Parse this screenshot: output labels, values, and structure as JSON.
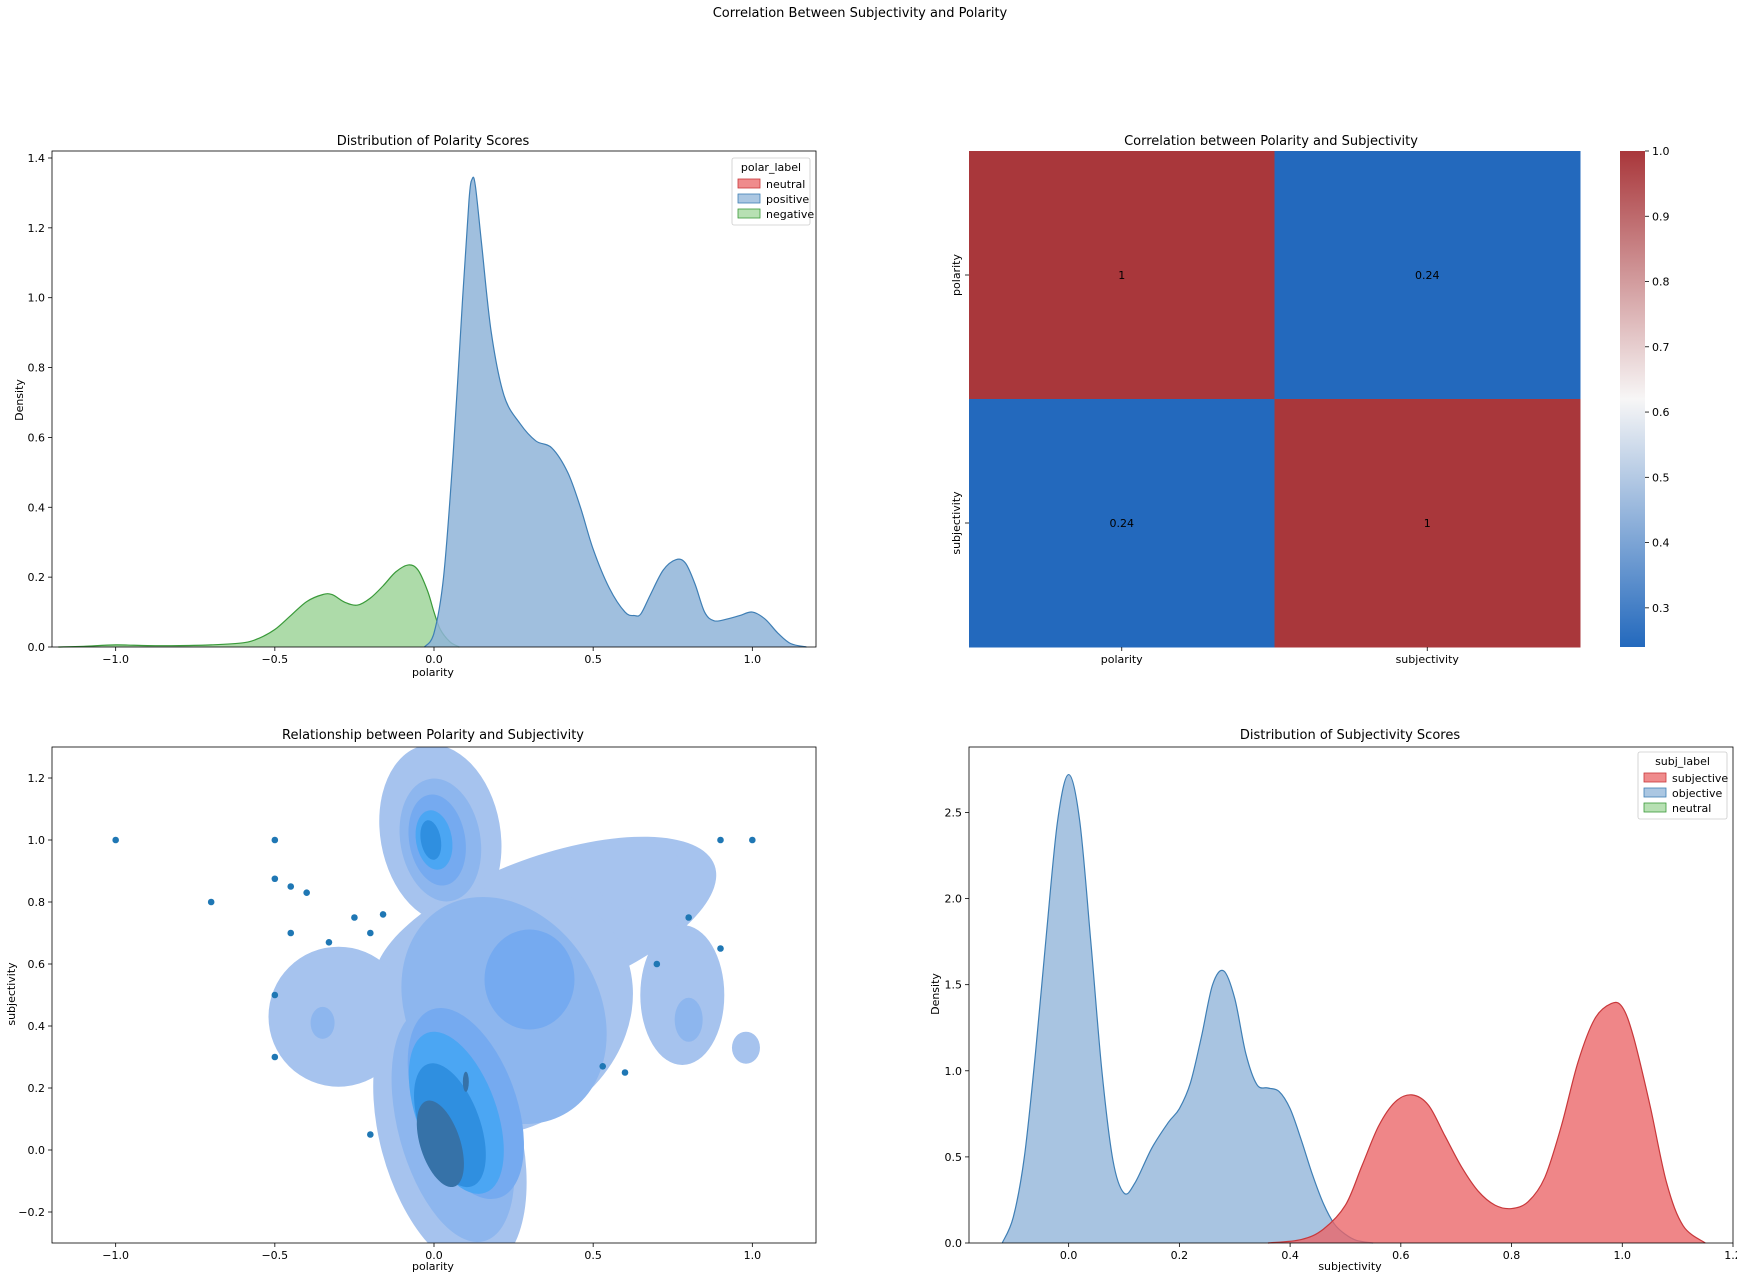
{
  "suptitle": "Correlation Between Subjectivity and Polarity",
  "chart_data": [
    {
      "type": "area",
      "title": "Distribution of Polarity Scores",
      "xlabel": "polarity",
      "ylabel": "Density",
      "xlim": [
        -1.2,
        1.2
      ],
      "ylim": [
        0,
        1.42
      ],
      "xticks": [
        -1.0,
        -0.5,
        0.0,
        0.5,
        1.0
      ],
      "xtick_labels": [
        "−1.0",
        "−0.5",
        "0.0",
        "0.5",
        "1.0"
      ],
      "yticks": [
        0.0,
        0.2,
        0.4,
        0.6,
        0.8,
        1.0,
        1.2,
        1.4
      ],
      "ytick_labels": [
        "0.0",
        "0.2",
        "0.4",
        "0.6",
        "0.8",
        "1.0",
        "1.2",
        "1.4"
      ],
      "legend": {
        "title": "polar_label",
        "placement": "top-right",
        "entries": [
          "neutral",
          "positive",
          "negative"
        ]
      },
      "series": [
        {
          "name": "negative",
          "color": "#9fd59a",
          "edge": "#3a9a3a",
          "x": [
            -1.18,
            -1.1,
            -1.0,
            -0.9,
            -0.8,
            -0.7,
            -0.6,
            -0.55,
            -0.5,
            -0.45,
            -0.4,
            -0.35,
            -0.32,
            -0.28,
            -0.24,
            -0.2,
            -0.16,
            -0.12,
            -0.08,
            -0.05,
            -0.02,
            0.0,
            0.02,
            0.05,
            0.08
          ],
          "y": [
            0.0,
            0.002,
            0.006,
            0.004,
            0.004,
            0.006,
            0.012,
            0.025,
            0.05,
            0.09,
            0.13,
            0.15,
            0.15,
            0.128,
            0.12,
            0.14,
            0.175,
            0.215,
            0.235,
            0.22,
            0.16,
            0.1,
            0.05,
            0.015,
            0.0
          ]
        },
        {
          "name": "positive",
          "color": "#8fb4d8",
          "edge": "#3f7fb5",
          "x": [
            -0.03,
            0.0,
            0.03,
            0.06,
            0.09,
            0.11,
            0.12,
            0.13,
            0.15,
            0.18,
            0.22,
            0.27,
            0.32,
            0.37,
            0.42,
            0.46,
            0.5,
            0.55,
            0.6,
            0.63,
            0.65,
            0.68,
            0.72,
            0.76,
            0.79,
            0.82,
            0.85,
            0.88,
            0.92,
            0.96,
            1.0,
            1.04,
            1.08,
            1.12,
            1.17
          ],
          "y": [
            0.0,
            0.04,
            0.2,
            0.55,
            1.0,
            1.28,
            1.34,
            1.32,
            1.15,
            0.9,
            0.72,
            0.64,
            0.59,
            0.57,
            0.5,
            0.4,
            0.28,
            0.17,
            0.1,
            0.09,
            0.095,
            0.15,
            0.22,
            0.25,
            0.24,
            0.18,
            0.1,
            0.075,
            0.08,
            0.09,
            0.1,
            0.08,
            0.04,
            0.01,
            0.0
          ]
        }
      ]
    },
    {
      "type": "heatmap",
      "title": "Correlation between Polarity and Subjectivity",
      "categories_x": [
        "polarity",
        "subjectivity"
      ],
      "categories_y": [
        "polarity",
        "subjectivity"
      ],
      "values": [
        [
          1,
          0.24
        ],
        [
          0.24,
          1
        ]
      ],
      "annotations": [
        [
          "1",
          "0.24"
        ],
        [
          "0.24",
          "1"
        ]
      ],
      "colorbar": {
        "min": 0.24,
        "max": 1.0,
        "ticks": [
          0.3,
          0.4,
          0.5,
          0.6,
          0.7,
          0.8,
          0.9,
          1.0
        ],
        "tick_labels": [
          "0.3",
          "0.4",
          "0.5",
          "0.6",
          "0.7",
          "0.8",
          "0.9",
          "1.0"
        ]
      },
      "colors": {
        "low": "#2369bd",
        "mid": "#f7f6f6",
        "high": "#a9373b"
      }
    },
    {
      "type": "scatter",
      "title": "Relationship between Polarity and Subjectivity",
      "xlabel": "polarity",
      "ylabel": "subjectivity",
      "xlim": [
        -1.2,
        1.2
      ],
      "ylim": [
        -0.3,
        1.3
      ],
      "xticks": [
        -1.0,
        -0.5,
        0.0,
        0.5,
        1.0
      ],
      "xtick_labels": [
        "−1.0",
        "−0.5",
        "0.0",
        "0.5",
        "1.0"
      ],
      "yticks": [
        -0.2,
        0.0,
        0.2,
        0.4,
        0.6,
        0.8,
        1.0,
        1.2
      ],
      "ytick_labels": [
        "−0.2",
        "0.0",
        "0.2",
        "0.4",
        "0.6",
        "0.8",
        "1.0",
        "1.2"
      ],
      "point_color": "#1f77b4",
      "kde_colors": [
        "#a6c3ee",
        "#8db6ee",
        "#75aaf0",
        "#4ba6f3",
        "#2f8fe0",
        "#3672a8"
      ],
      "points": [
        [
          -1.0,
          1.0
        ],
        [
          -0.7,
          0.8
        ],
        [
          -0.5,
          1.0
        ],
        [
          -0.5,
          0.875
        ],
        [
          -0.45,
          0.85
        ],
        [
          -0.4,
          0.83
        ],
        [
          -0.45,
          0.7
        ],
        [
          -0.33,
          0.67
        ],
        [
          -0.25,
          0.75
        ],
        [
          -0.2,
          0.7
        ],
        [
          -0.16,
          0.76
        ],
        [
          -0.5,
          0.5
        ],
        [
          -0.5,
          0.3
        ],
        [
          -0.2,
          0.05
        ],
        [
          0.53,
          0.27
        ],
        [
          0.6,
          0.25
        ],
        [
          0.7,
          0.6
        ],
        [
          0.8,
          0.75
        ],
        [
          0.9,
          0.65
        ],
        [
          0.9,
          1.0
        ],
        [
          1.0,
          1.0
        ]
      ]
    },
    {
      "type": "area",
      "title": "Distribution of Subjectivity Scores",
      "xlabel": "subjectivity",
      "ylabel": "Density",
      "xlim": [
        -0.18,
        1.2
      ],
      "ylim": [
        0,
        2.88
      ],
      "xticks": [
        0.0,
        0.2,
        0.4,
        0.6,
        0.8,
        1.0,
        1.2
      ],
      "xtick_labels": [
        "0.0",
        "0.2",
        "0.4",
        "0.6",
        "0.8",
        "1.0",
        "1.2"
      ],
      "yticks": [
        0.0,
        0.5,
        1.0,
        1.5,
        2.0,
        2.5
      ],
      "ytick_labels": [
        "0.0",
        "0.5",
        "1.0",
        "1.5",
        "2.0",
        "2.5"
      ],
      "legend": {
        "title": "subj_label",
        "placement": "top-right",
        "entries": [
          "subjective",
          "objective",
          "neutral"
        ]
      },
      "series": [
        {
          "name": "objective",
          "color": "#8fb4d8",
          "edge": "#3f7fb5",
          "x": [
            -0.12,
            -0.1,
            -0.08,
            -0.06,
            -0.04,
            -0.02,
            0.0,
            0.02,
            0.04,
            0.06,
            0.08,
            0.1,
            0.12,
            0.15,
            0.18,
            0.2,
            0.22,
            0.24,
            0.26,
            0.28,
            0.3,
            0.32,
            0.34,
            0.36,
            0.38,
            0.4,
            0.42,
            0.44,
            0.46,
            0.48,
            0.5,
            0.52,
            0.55
          ],
          "y": [
            0.0,
            0.15,
            0.5,
            1.1,
            1.8,
            2.45,
            2.72,
            2.45,
            1.75,
            1.0,
            0.48,
            0.29,
            0.35,
            0.55,
            0.7,
            0.78,
            0.93,
            1.2,
            1.5,
            1.58,
            1.42,
            1.1,
            0.92,
            0.9,
            0.88,
            0.78,
            0.6,
            0.4,
            0.23,
            0.11,
            0.05,
            0.015,
            0.0
          ]
        },
        {
          "name": "subjective",
          "color": "#ea6466",
          "edge": "#c8383b",
          "x": [
            0.36,
            0.42,
            0.46,
            0.5,
            0.53,
            0.56,
            0.59,
            0.62,
            0.65,
            0.68,
            0.71,
            0.74,
            0.77,
            0.8,
            0.83,
            0.86,
            0.89,
            0.92,
            0.95,
            0.98,
            1.0,
            1.02,
            1.05,
            1.08,
            1.11,
            1.15
          ],
          "y": [
            0.0,
            0.02,
            0.08,
            0.22,
            0.45,
            0.68,
            0.82,
            0.86,
            0.8,
            0.62,
            0.44,
            0.3,
            0.22,
            0.2,
            0.24,
            0.38,
            0.68,
            1.05,
            1.3,
            1.39,
            1.37,
            1.2,
            0.8,
            0.35,
            0.1,
            0.0
          ]
        }
      ]
    }
  ]
}
